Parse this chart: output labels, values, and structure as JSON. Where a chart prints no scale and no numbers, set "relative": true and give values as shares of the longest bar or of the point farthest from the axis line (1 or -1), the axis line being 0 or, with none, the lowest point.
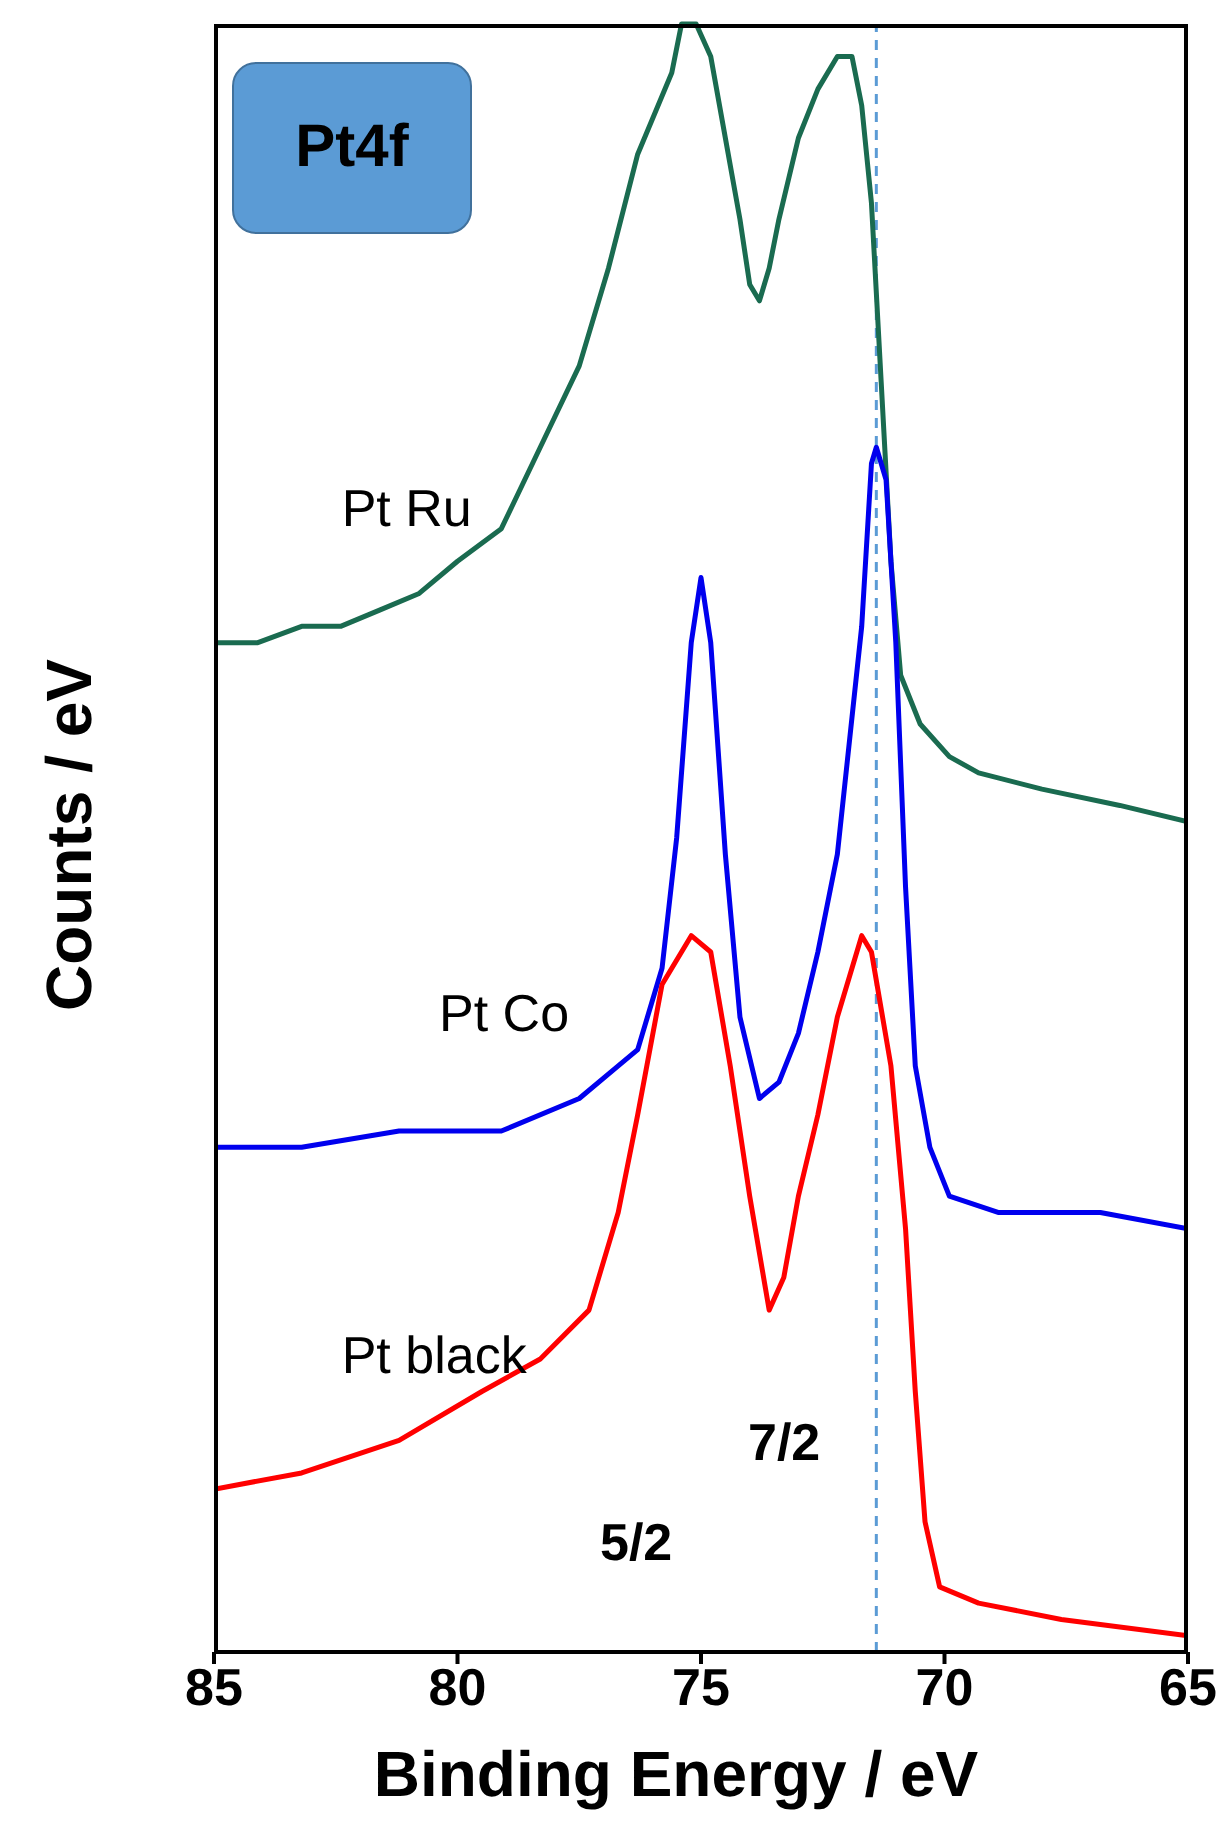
{
  "chart_data": {
    "type": "line",
    "title": "Pt4f",
    "xlabel": "Binding Energy / eV",
    "ylabel": "Counts / eV",
    "relative": true,
    "xlim": [
      85,
      65
    ],
    "xticks": [
      85,
      80,
      75,
      70,
      65
    ],
    "marker": "none",
    "line_style": "solid",
    "ref_lines": [
      {
        "axis": "x",
        "value": 71.4,
        "color": "#5b9bd5",
        "line_style": "dashed"
      }
    ],
    "annotations": [
      "5/2",
      "7/2"
    ],
    "series": [
      {
        "name": "Pt Ru",
        "color": "#1a6b50",
        "x": [
          85.0,
          84.1,
          83.2,
          82.4,
          81.6,
          80.8,
          80.0,
          79.1,
          78.3,
          77.5,
          76.9,
          76.3,
          75.6,
          75.4,
          75.1,
          74.8,
          74.5,
          74.2,
          74.0,
          73.8,
          73.6,
          73.4,
          73.0,
          72.6,
          72.2,
          71.9,
          71.7,
          71.5,
          71.3,
          71.1,
          70.9,
          70.5,
          69.9,
          69.3,
          68.0,
          66.4,
          65.0
        ],
        "values": [
          0.62,
          0.62,
          0.63,
          0.63,
          0.64,
          0.65,
          0.67,
          0.69,
          0.74,
          0.79,
          0.85,
          0.92,
          0.97,
          1.0,
          1.0,
          0.98,
          0.93,
          0.88,
          0.84,
          0.83,
          0.85,
          0.88,
          0.93,
          0.96,
          0.98,
          0.98,
          0.95,
          0.89,
          0.78,
          0.67,
          0.6,
          0.57,
          0.55,
          0.54,
          0.53,
          0.52,
          0.51
        ]
      },
      {
        "name": "Pt Co",
        "color": "#0000ee",
        "x": [
          85.0,
          83.2,
          81.2,
          79.1,
          77.5,
          76.7,
          76.3,
          75.8,
          75.5,
          75.2,
          75.0,
          74.8,
          74.5,
          74.2,
          73.8,
          73.4,
          73.0,
          72.6,
          72.2,
          71.7,
          71.5,
          71.4,
          71.2,
          71.0,
          70.8,
          70.6,
          70.3,
          69.9,
          68.9,
          66.8,
          65.0
        ],
        "values": [
          0.31,
          0.31,
          0.32,
          0.32,
          0.34,
          0.36,
          0.37,
          0.42,
          0.5,
          0.62,
          0.66,
          0.62,
          0.49,
          0.39,
          0.34,
          0.35,
          0.38,
          0.43,
          0.49,
          0.63,
          0.73,
          0.74,
          0.72,
          0.62,
          0.47,
          0.36,
          0.31,
          0.28,
          0.27,
          0.27,
          0.26
        ]
      },
      {
        "name": "Pt black",
        "color": "#ff0000",
        "x": [
          85.0,
          83.2,
          81.2,
          79.5,
          78.3,
          77.3,
          76.7,
          76.3,
          75.8,
          75.2,
          74.8,
          74.4,
          74.0,
          73.6,
          73.3,
          73.0,
          72.6,
          72.2,
          71.7,
          71.5,
          71.1,
          70.8,
          70.6,
          70.4,
          70.1,
          69.3,
          67.6,
          65.0
        ],
        "values": [
          0.1,
          0.11,
          0.13,
          0.16,
          0.18,
          0.21,
          0.27,
          0.33,
          0.41,
          0.44,
          0.43,
          0.36,
          0.28,
          0.21,
          0.23,
          0.28,
          0.33,
          0.39,
          0.44,
          0.43,
          0.36,
          0.26,
          0.16,
          0.08,
          0.04,
          0.03,
          0.02,
          0.01
        ]
      }
    ]
  }
}
